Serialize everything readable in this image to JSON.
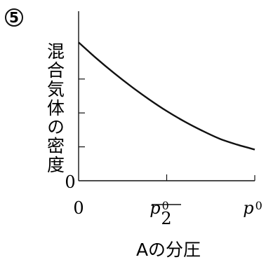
{
  "problem_marker": "⑤",
  "chart_data": {
    "type": "line",
    "title": "",
    "ylabel": "混合気体の密度",
    "xlabel": "Aの分圧",
    "x_ticks": [
      {
        "value": 0,
        "label": "0"
      },
      {
        "value": 0.5,
        "label_main": "p",
        "label_sub": "0",
        "label_den": "2"
      },
      {
        "value": 1,
        "label_main": "p",
        "label_sub": "0"
      }
    ],
    "y_origin_label": "0",
    "xlim": [
      0,
      1
    ],
    "ylim": [
      0,
      1
    ],
    "y_ticks": [
      0.2,
      0.4,
      0.6
    ],
    "grid": false,
    "series": [
      {
        "x": [
          0,
          0.1,
          0.2,
          0.3,
          0.4,
          0.5,
          0.6,
          0.7,
          0.8,
          0.9,
          1.0
        ],
        "y": [
          0.816,
          0.723,
          0.636,
          0.555,
          0.48,
          0.411,
          0.35,
          0.296,
          0.248,
          0.213,
          0.184
        ]
      }
    ]
  }
}
